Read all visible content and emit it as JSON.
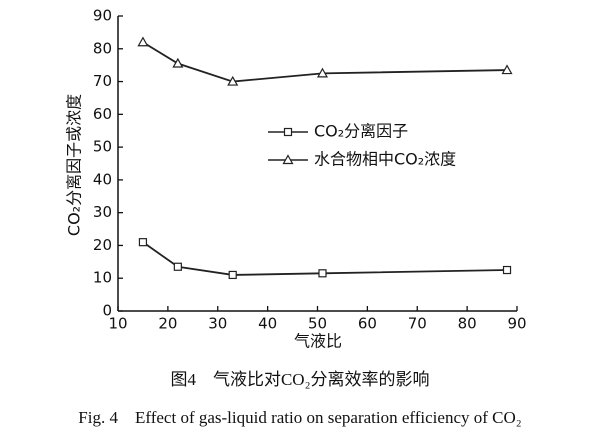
{
  "chart_data": {
    "type": "line",
    "x_label": "气液比",
    "y_label": "CO₂分离因子或浓度",
    "caption_cn": "图4　气液比对CO₂分离效率的影响",
    "caption_en": "Fig. 4　Effect of gas-liquid ratio on separation efficiency of CO₂",
    "x": [
      15,
      22,
      33,
      51,
      88
    ],
    "series": [
      {
        "name": "CO₂分离因子",
        "color": "#222222",
        "marker": "square",
        "values": [
          21,
          13.5,
          11,
          11.5,
          12.5
        ]
      },
      {
        "name": "水合物相中CO₂浓度",
        "color": "#222222",
        "marker": "triangle",
        "values": [
          82,
          75.5,
          70,
          72.5,
          73.5
        ]
      }
    ],
    "xlim": [
      10,
      90
    ],
    "xticks": [
      10,
      20,
      30,
      40,
      50,
      60,
      70,
      80,
      90
    ],
    "ylim": [
      0,
      90
    ],
    "yticks": [
      0,
      10,
      20,
      30,
      40,
      50,
      60,
      70,
      80,
      90
    ],
    "grid": false
  }
}
